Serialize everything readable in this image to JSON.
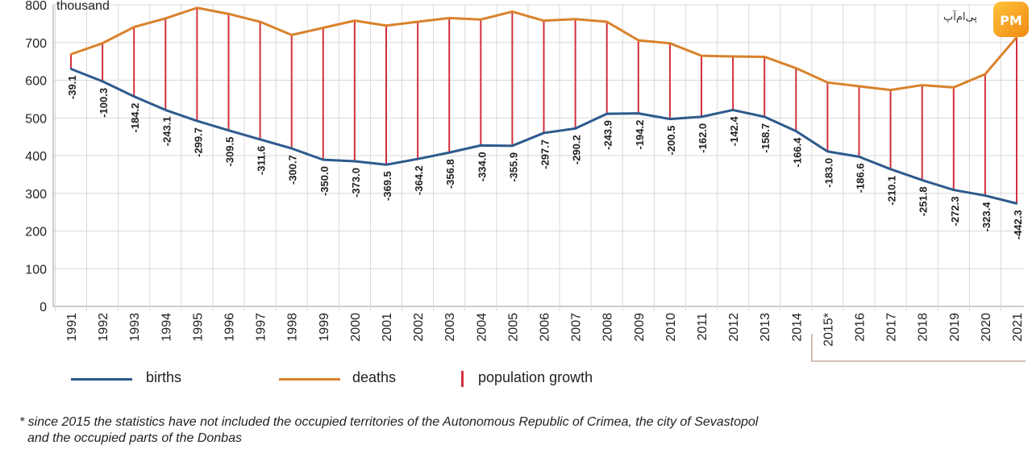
{
  "chart_data": {
    "type": "line",
    "unit_label": "thousand",
    "years": [
      "1991",
      "1992",
      "1993",
      "1994",
      "1995",
      "1996",
      "1997",
      "1998",
      "1999",
      "2000",
      "2001",
      "2002",
      "2003",
      "2004",
      "2005",
      "2006",
      "2007",
      "2008",
      "2009",
      "2010",
      "2011",
      "2012",
      "2013",
      "2014",
      "2015*",
      "2016",
      "2017",
      "2018",
      "2019",
      "2020",
      "2021"
    ],
    "series": [
      {
        "name": "births",
        "color": "#2e5a8c",
        "values": [
          630,
          597,
          557,
          521,
          492,
          467,
          443,
          419,
          389,
          385,
          376,
          391,
          408,
          427,
          426,
          460,
          472,
          511,
          512,
          497,
          503,
          521,
          503,
          465,
          411,
          397,
          364,
          335,
          309,
          294,
          273
        ]
      },
      {
        "name": "deaths",
        "color": "#d9822b",
        "values": [
          669,
          698,
          741,
          764,
          792,
          776,
          755,
          720,
          739,
          758,
          745,
          755,
          765,
          761,
          782,
          758,
          762,
          755,
          706,
          698,
          665,
          663,
          662,
          632,
          594,
          584,
          574,
          587,
          581,
          616,
          714
        ]
      },
      {
        "name": "population growth",
        "color": "#d3313b",
        "values": [
          -39.1,
          -100.3,
          -184.2,
          -243.1,
          -299.7,
          -309.5,
          -311.6,
          -300.7,
          -350.0,
          -373.0,
          -369.5,
          -364.2,
          -356.8,
          -334.0,
          -355.9,
          -297.7,
          -290.2,
          -243.9,
          -194.2,
          -200.5,
          -162.0,
          -142.4,
          -158.7,
          -166.4,
          -183.0,
          -186.6,
          -210.1,
          -251.8,
          -272.3,
          -323.4,
          -442.3
        ]
      }
    ],
    "growth_labels": [
      "-39.1",
      "-100.3",
      "-184.2",
      "-243.1",
      "-299.7",
      "-309.5",
      "-311.6",
      "-300.7",
      "-350.0",
      "-373.0",
      "-369.5",
      "-364.2",
      "-356.8",
      "-334.0",
      "-355.9",
      "-297.7",
      "-290.2",
      "-243.9",
      "-194.2",
      "-200.5",
      "-162.0",
      "-142.4",
      "-158.7",
      "-166.4",
      "-183.0",
      "-186.6",
      "-210.1",
      "-251.8",
      "-272.3",
      "-323.4",
      "-442.3"
    ],
    "yticks": [
      0,
      100,
      200,
      300,
      400,
      500,
      600,
      700,
      800
    ],
    "ytick_labels": [
      "0",
      "100",
      "200",
      "300",
      "400",
      "500",
      "600",
      "700",
      "800"
    ],
    "ylim": [
      0,
      800
    ],
    "grid": true,
    "legend_position": "bottom"
  },
  "legend": {
    "births": "births",
    "deaths": "deaths",
    "growth": "population growth"
  },
  "footnote": {
    "line1": "* since 2015 the statistics have not included the occupied territories of the Autonomous Republic of Crimea, the city of Sevastopol",
    "line2": "and the occupied parts of the Donbas"
  },
  "logo": {
    "text": "پی‌ام‌آپ",
    "badge": "PM"
  }
}
